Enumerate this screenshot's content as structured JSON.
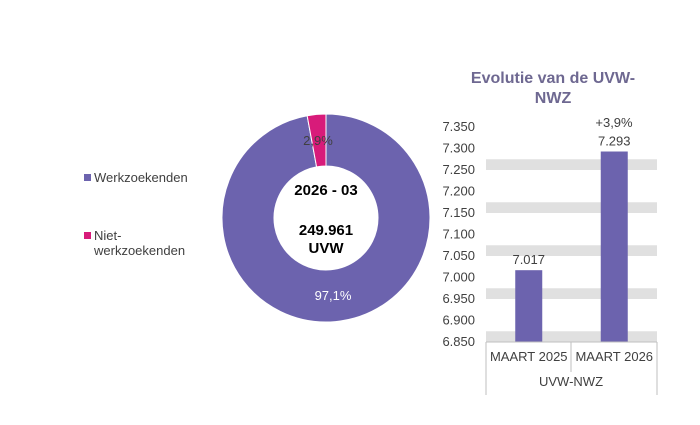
{
  "chart_data": [
    {
      "type": "pie",
      "style": "donut",
      "center_label": {
        "period": "2026 - 03",
        "total": "249.961",
        "unit": "UVW"
      },
      "slices": [
        {
          "name": "Werkzoekenden",
          "value": 97.1,
          "label": "97,1%",
          "color": "#6C63AE"
        },
        {
          "name": "Niet-werkzoekenden",
          "value": 2.9,
          "label": "2,9%",
          "color": "#D81B7A"
        }
      ],
      "legend": {
        "placement": "left",
        "entries": [
          {
            "lines": [
              "Werkzoekenden"
            ],
            "color": "#6C63AE"
          },
          {
            "lines": [
              "Niet-",
              "werkzoekenden"
            ],
            "color": "#D81B7A"
          }
        ]
      }
    },
    {
      "type": "bar",
      "title_lines": [
        "Evolutie van de UVW-",
        "NWZ"
      ],
      "categories": [
        "MAART 2025",
        "MAART 2026"
      ],
      "group_label": "UVW-NWZ",
      "values": [
        7017,
        7293
      ],
      "value_labels": [
        "7.017",
        "7.293"
      ],
      "change_label": "+3,9%",
      "ylim": [
        6850,
        7350
      ],
      "yticks": [
        6850,
        6900,
        6950,
        7000,
        7050,
        7100,
        7150,
        7200,
        7250,
        7300,
        7350
      ],
      "ytick_labels": [
        "6.850",
        "6.900",
        "6.950",
        "7.000",
        "7.050",
        "7.100",
        "7.150",
        "7.200",
        "7.250",
        "7.300",
        "7.350"
      ],
      "grid": "horizontal bands",
      "bar_color": "#6C63AE"
    }
  ]
}
